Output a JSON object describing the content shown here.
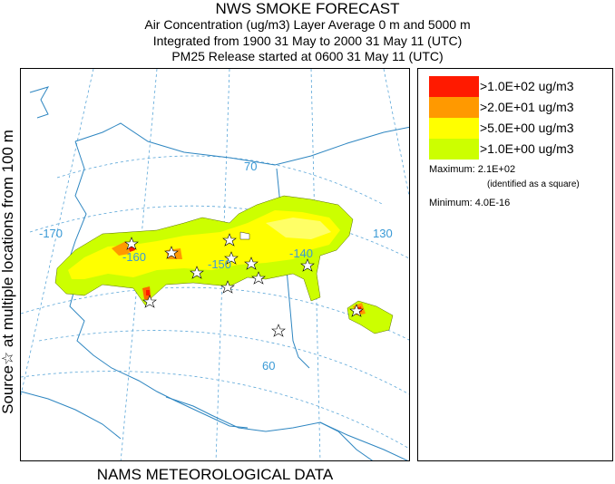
{
  "titles": {
    "main": "NWS SMOKE FORECAST",
    "line1": "Air Concentration (ug/m3) Layer Average    0 m and  5000 m",
    "line2": "Integrated from 1900 31 May to 2000 31 May 11 (UTC)",
    "line3": "PM25 Release started at 0600 31 May 11 (UTC)"
  },
  "side_label": "Source☆   at multiple locations   from   100 m",
  "bottom_label": "NAMS METEOROLOGICAL DATA",
  "map": {
    "grid_labels": {
      "lon_170": "-170",
      "lon_160": "-160",
      "lon_150": "-150",
      "lon_140": "-140",
      "lon_130": "130",
      "lat_70": "70",
      "lat_60": "60"
    },
    "colors": {
      "coast": "#2e86c1",
      "grid": "#5aa6d8",
      "level1": "#ccff00",
      "level2": "#ffff00",
      "level3": "#ff9900",
      "level4": "#ff0000"
    }
  },
  "legend": {
    "items": [
      {
        "label": ">1.0E+02 ug/m3",
        "color": "#ff1a00"
      },
      {
        "label": ">2.0E+01 ug/m3",
        "color": "#ff9900"
      },
      {
        "label": ">5.0E+00 ug/m3",
        "color": "#ffff00"
      },
      {
        "label": ">1.0E+00 ug/m3",
        "color": "#ccff00"
      }
    ],
    "maximum": "Maximum: 2.1E+02",
    "maximum_note": "(identified as a square)",
    "minimum": "Minimum: 4.0E-16"
  }
}
